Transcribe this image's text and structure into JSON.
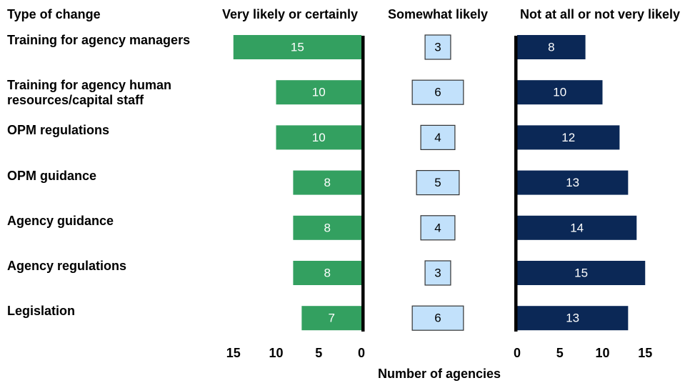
{
  "chart_data": {
    "type": "diverging_bar",
    "category_axis_label": "Type of change",
    "x_label": "Number of agencies",
    "categories": [
      "Training for agency managers",
      "Training for agency human resources/capital staff",
      "OPM regulations",
      "OPM guidance",
      "Agency guidance",
      "Agency regulations",
      "Legislation"
    ],
    "series": [
      {
        "name": "Very likely or certainly",
        "color": "#33a060",
        "values": [
          15,
          10,
          10,
          8,
          8,
          8,
          7
        ]
      },
      {
        "name": "Somewhat likely",
        "color": "#c2e1fb",
        "values": [
          3,
          6,
          4,
          5,
          4,
          3,
          6
        ]
      },
      {
        "name": "Not at all or not very likely",
        "color": "#0b2856",
        "values": [
          8,
          10,
          12,
          13,
          14,
          15,
          13
        ]
      }
    ],
    "xlim": [
      0,
      15
    ],
    "xticks": [
      0,
      5,
      10,
      15
    ]
  }
}
